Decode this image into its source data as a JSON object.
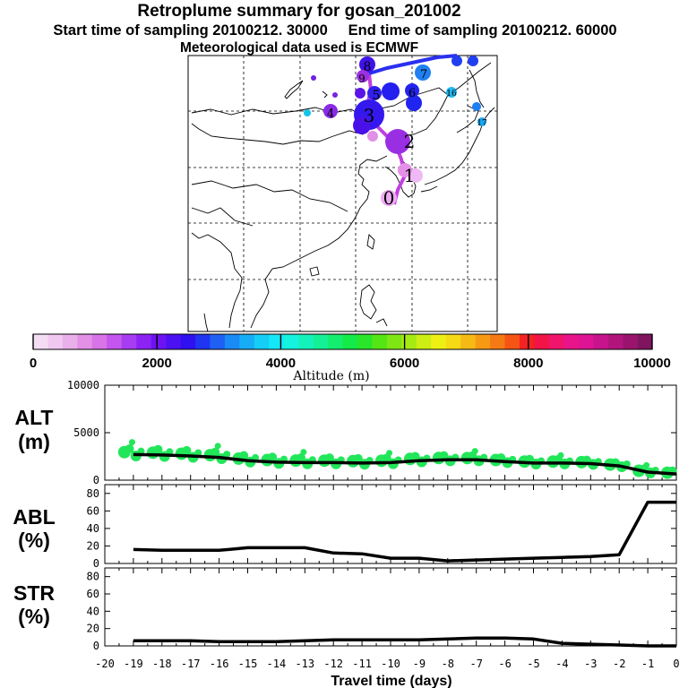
{
  "header": {
    "title": "Retroplume summary for gosan_201002",
    "start_label": "Start time of sampling 20100212. 30000",
    "end_label": "End time of sampling 20100212. 60000",
    "met_label": "Meteorological data used is ECMWF"
  },
  "colorbar": {
    "label": "Altitude (m)",
    "ticks": [
      "0",
      "2000",
      "4000",
      "6000",
      "8000",
      "10000"
    ],
    "range": [
      0,
      10000
    ],
    "colors": [
      "#f4ddf4",
      "#f0c8f0",
      "#eab0ea",
      "#e291e6",
      "#d873e8",
      "#c455ee",
      "#a83cf2",
      "#8c22f4",
      "#6e12f4",
      "#4d10f2",
      "#3010f0",
      "#1f35f2",
      "#1f60f4",
      "#1a8af4",
      "#16acf6",
      "#14cef6",
      "#14e8f6",
      "#14f2e0",
      "#14f2bc",
      "#14f096",
      "#14ee6e",
      "#14ea48",
      "#2ae62a",
      "#54e614",
      "#7ee614",
      "#a6ea14",
      "#ccee14",
      "#eef014",
      "#f6da14",
      "#f6ba14",
      "#f69a14",
      "#f67a14",
      "#f65414",
      "#f42222",
      "#f21446",
      "#f0146c",
      "#ea148a",
      "#de1494",
      "#c8148c",
      "#b2147e",
      "#9a146e",
      "#80145e"
    ]
  },
  "map": {
    "points": [
      {
        "label": "0",
        "color": "#e8a4ec"
      },
      {
        "label": "1",
        "color": "#e89ee8"
      },
      {
        "label": "2",
        "color": "#9b2be0"
      },
      {
        "label": "3",
        "color": "#3a1cf0"
      },
      {
        "label": "4",
        "color": "#8a2ae6"
      },
      {
        "label": "5",
        "color": "#2a28f0"
      },
      {
        "label": "6",
        "color": "#2626f0"
      },
      {
        "label": "7",
        "color": "#1e7af2"
      },
      {
        "label": "8",
        "color": "#4a12e8"
      },
      {
        "label": "9",
        "color": "#b040d8"
      },
      {
        "label": "16",
        "color": "#20b8f0"
      },
      {
        "label": "17",
        "color": "#1e8ef2"
      }
    ]
  },
  "chart_data": [
    {
      "type": "line",
      "panel": "ALT",
      "ylabel": "ALT (m)",
      "ylim": [
        0,
        10000
      ],
      "yticks": [
        "10000",
        "5000",
        "0"
      ],
      "x": [
        -19,
        -18,
        -17,
        -16,
        -15,
        -14,
        -13,
        -12,
        -11,
        -10,
        -9,
        -8,
        -7,
        -6,
        -5,
        -4,
        -3,
        -2,
        -1,
        0
      ],
      "values": [
        2700,
        2650,
        2550,
        2400,
        2050,
        1900,
        1850,
        1850,
        1800,
        1850,
        2050,
        2150,
        2150,
        1950,
        1800,
        1800,
        1750,
        1500,
        850,
        650
      ],
      "points_marker_color": "#22e65a"
    },
    {
      "type": "line",
      "panel": "ABL",
      "ylabel": "ABL (%)",
      "ylim": [
        0,
        90
      ],
      "yticks": [
        "80",
        "60",
        "40",
        "20",
        "0"
      ],
      "x": [
        -19,
        -18,
        -17,
        -16,
        -15,
        -14,
        -13,
        -12,
        -11,
        -10,
        -9,
        -8,
        -7,
        -6,
        -5,
        -4,
        -3,
        -2,
        -1,
        0
      ],
      "values": [
        16,
        15,
        15,
        15,
        18,
        18,
        18,
        12,
        11,
        6,
        6,
        3,
        4,
        5,
        6,
        7,
        8,
        10,
        70,
        70
      ]
    },
    {
      "type": "line",
      "panel": "STR",
      "ylabel": "STR (%)",
      "ylim": [
        0,
        90
      ],
      "yticks": [
        "80",
        "60",
        "40",
        "20",
        "0"
      ],
      "x": [
        -19,
        -18,
        -17,
        -16,
        -15,
        -14,
        -13,
        -12,
        -11,
        -10,
        -9,
        -8,
        -7,
        -6,
        -5,
        -4,
        -3,
        -2,
        -1,
        0
      ],
      "values": [
        6,
        6,
        6,
        5,
        5,
        5,
        6,
        7,
        7,
        7,
        7,
        8,
        9,
        9,
        8,
        3,
        2,
        1,
        0,
        0
      ]
    }
  ],
  "xaxis": {
    "label": "Travel time (days)",
    "ticks": [
      "-20",
      "-19",
      "-18",
      "-17",
      "-16",
      "-15",
      "-14",
      "-13",
      "-12",
      "-11",
      "-10",
      "-9",
      "-8",
      "-7",
      "-6",
      "-5",
      "-4",
      "-3",
      "-2",
      "-1",
      "0"
    ],
    "range": [
      -20,
      0
    ]
  },
  "panel_labels": {
    "alt": [
      "ALT",
      "(m)"
    ],
    "abl": [
      "ABL",
      "(%)"
    ],
    "str": [
      "STR",
      "(%)"
    ]
  }
}
